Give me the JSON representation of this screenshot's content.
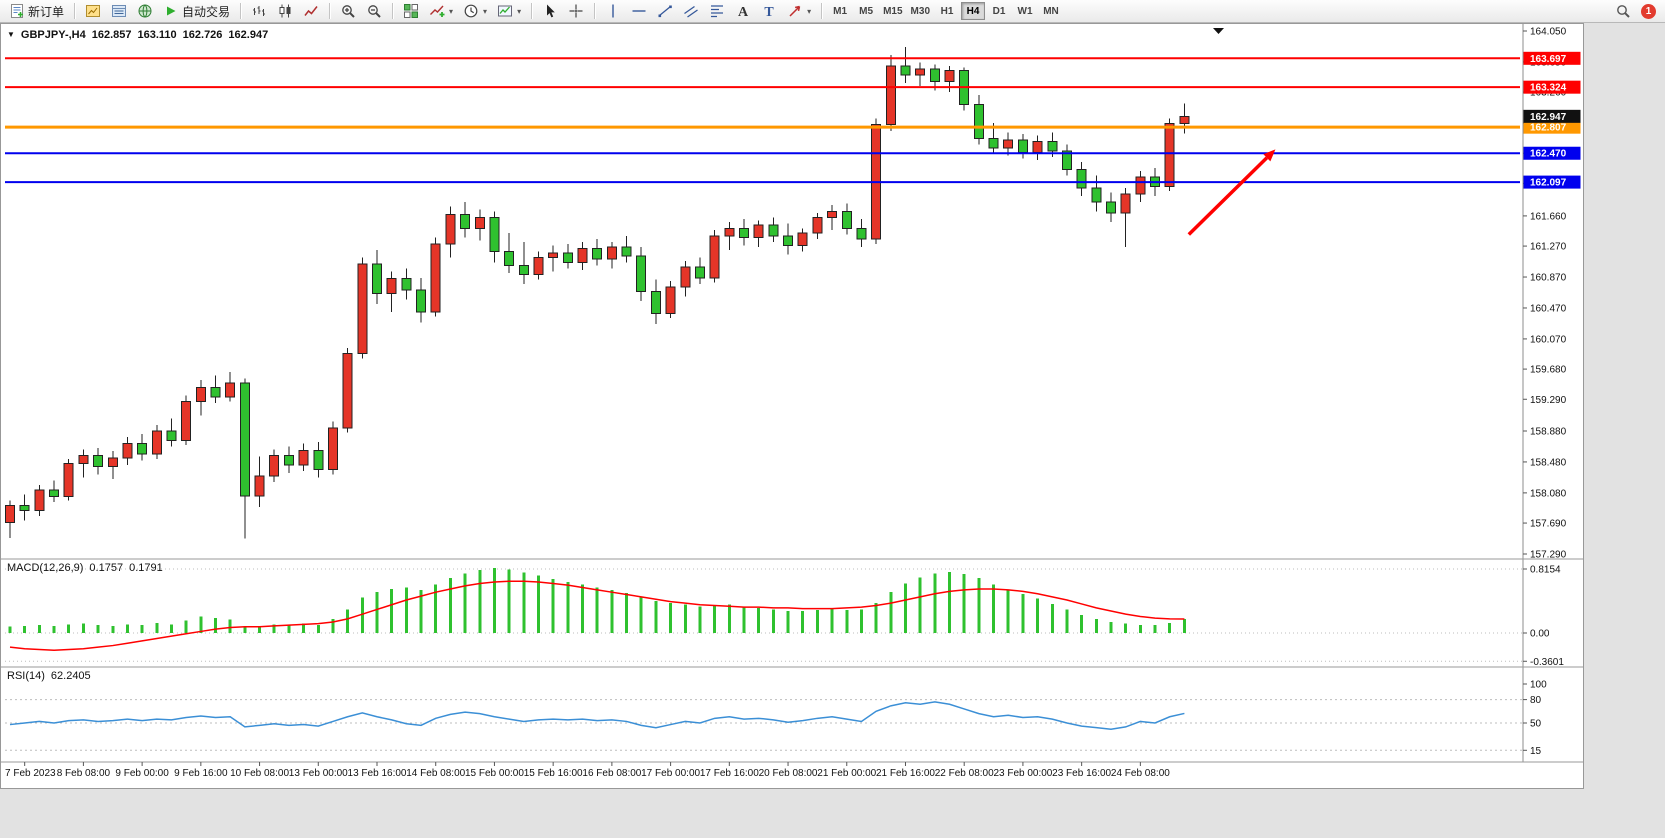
{
  "toolbar": {
    "new_order_label": "新订单",
    "autotrade_label": "自动交易",
    "timeframes": [
      "M1",
      "M5",
      "M15",
      "M30",
      "H1",
      "H4",
      "D1",
      "W1",
      "MN"
    ],
    "active_timeframe": "H4",
    "notification_count": "1",
    "items": [
      {
        "t": "btn",
        "name": "new-order-button",
        "icon": "new-order",
        "label_key": "new_order_label"
      },
      {
        "t": "sep"
      },
      {
        "t": "btn",
        "name": "market-watch-button",
        "icon": "market-watch"
      },
      {
        "t": "btn",
        "name": "data-window-button",
        "icon": "data-window"
      },
      {
        "t": "btn",
        "name": "navigator-button",
        "icon": "navigator"
      },
      {
        "t": "btn",
        "name": "autotrade-button",
        "icon": "autotrade",
        "label_key": "autotrade_label"
      },
      {
        "t": "sep"
      },
      {
        "t": "btn",
        "name": "bar-chart-button",
        "icon": "bar-chart"
      },
      {
        "t": "btn",
        "name": "candlestick-chart-button",
        "icon": "candle-chart"
      },
      {
        "t": "btn",
        "name": "line-chart-button",
        "icon": "line-chart"
      },
      {
        "t": "sep"
      },
      {
        "t": "btn",
        "name": "zoom-in-button",
        "icon": "zoom-in"
      },
      {
        "t": "btn",
        "name": "zoom-out-button",
        "icon": "zoom-out"
      },
      {
        "t": "sep"
      },
      {
        "t": "btn",
        "name": "tile-windows-button",
        "icon": "tile-windows"
      },
      {
        "t": "btn",
        "name": "indicators-button",
        "icon": "indicators",
        "caret": true
      },
      {
        "t": "btn",
        "name": "periods-button",
        "icon": "periods-clock",
        "caret": true
      },
      {
        "t": "btn",
        "name": "templates-button",
        "icon": "chart-template",
        "caret": true
      },
      {
        "t": "sep"
      },
      {
        "t": "btn",
        "name": "cursor-button",
        "icon": "cursor-arrow"
      },
      {
        "t": "btn",
        "name": "crosshair-button",
        "icon": "crosshair"
      },
      {
        "t": "sep"
      },
      {
        "t": "btn",
        "name": "vertical-line-button",
        "icon": "vertical-line"
      },
      {
        "t": "btn",
        "name": "horizontal-line-button",
        "icon": "horizontal-line"
      },
      {
        "t": "btn",
        "name": "trendline-button",
        "icon": "trendline"
      },
      {
        "t": "btn",
        "name": "channel-button",
        "icon": "channel"
      },
      {
        "t": "btn",
        "name": "fibonacci-button",
        "icon": "fibonacci"
      },
      {
        "t": "btn",
        "name": "text-button",
        "icon": "text-a"
      },
      {
        "t": "btn",
        "name": "label-button",
        "icon": "label-t"
      },
      {
        "t": "btn",
        "name": "shapes-button",
        "icon": "arrow-shape",
        "caret": true
      },
      {
        "t": "sep"
      },
      {
        "t": "timeframes"
      },
      {
        "t": "spacer"
      },
      {
        "t": "btn",
        "name": "search-button",
        "icon": "search"
      },
      {
        "t": "badge",
        "name": "notification-badge"
      }
    ]
  },
  "chart_data": [
    {
      "type": "candlestick",
      "symbol": "GBPJPY-",
      "timeframe": "H4",
      "title": {
        "symbol": "GBPJPY-,H4",
        "open": "162.857",
        "high": "163.110",
        "low": "162.726",
        "close": "162.947"
      },
      "colors": {
        "up": "#e53528",
        "down": "#2fc12f",
        "wick": "#222222"
      },
      "current_price": "162.947",
      "current_price_box_color": "#111111",
      "levels": [
        {
          "label": "163.697",
          "price": 163.697,
          "color": "#ff0000",
          "width": 2
        },
        {
          "label": "163.324",
          "price": 163.324,
          "color": "#ff0000",
          "width": 2
        },
        {
          "label": "162.807",
          "price": 162.807,
          "color": "#ff9800",
          "width": 3
        },
        {
          "label": "162.470",
          "price": 162.47,
          "color": "#0000ee",
          "width": 2
        },
        {
          "label": "162.097",
          "price": 162.097,
          "color": "#0000ee",
          "width": 2
        }
      ],
      "arrow": {
        "from": {
          "i": 80.3,
          "price": 161.42
        },
        "to": {
          "i": 86.2,
          "price": 162.52
        },
        "color": "#ff0000"
      },
      "y_ticks": [
        "164.050",
        "163.650",
        "163.260",
        "162.860",
        "162.470",
        "162.080",
        "161.660",
        "161.270",
        "160.870",
        "160.470",
        "160.070",
        "159.680",
        "159.290",
        "158.880",
        "158.480",
        "158.080",
        "157.690",
        "157.290"
      ],
      "x_labels": [
        "7 Feb 2023",
        "8 Feb 08:00",
        "9 Feb 00:00",
        "9 Feb 16:00",
        "10 Feb 08:00",
        "13 Feb 00:00",
        "13 Feb 16:00",
        "14 Feb 08:00",
        "15 Feb 00:00",
        "15 Feb 16:00",
        "16 Feb 08:00",
        "17 Feb 00:00",
        "17 Feb 16:00",
        "20 Feb 08:00",
        "21 Feb 00:00",
        "21 Feb 16:00",
        "22 Feb 08:00",
        "23 Feb 00:00",
        "23 Feb 16:00",
        "24 Feb 08:00"
      ],
      "label_start_index": 1,
      "label_step": 4,
      "candles": [
        [
          157.7,
          157.98,
          157.5,
          157.92
        ],
        [
          157.92,
          158.06,
          157.72,
          157.85
        ],
        [
          157.85,
          158.18,
          157.78,
          158.12
        ],
        [
          158.12,
          158.24,
          157.96,
          158.03
        ],
        [
          158.03,
          158.52,
          157.98,
          158.46
        ],
        [
          158.46,
          158.64,
          158.28,
          158.56
        ],
        [
          158.56,
          158.66,
          158.32,
          158.42
        ],
        [
          158.42,
          158.62,
          158.26,
          158.53
        ],
        [
          158.53,
          158.8,
          158.44,
          158.72
        ],
        [
          158.72,
          158.84,
          158.5,
          158.58
        ],
        [
          158.58,
          158.96,
          158.52,
          158.88
        ],
        [
          158.88,
          159.04,
          158.68,
          158.76
        ],
        [
          158.76,
          159.34,
          158.7,
          159.26
        ],
        [
          159.26,
          159.54,
          159.08,
          159.44
        ],
        [
          159.44,
          159.6,
          159.24,
          159.32
        ],
        [
          159.32,
          159.64,
          159.26,
          159.5
        ],
        [
          159.5,
          159.56,
          157.49,
          158.04
        ],
        [
          158.04,
          158.55,
          157.9,
          158.3
        ],
        [
          158.3,
          158.64,
          158.22,
          158.56
        ],
        [
          158.56,
          158.68,
          158.34,
          158.44
        ],
        [
          158.44,
          158.72,
          158.36,
          158.63
        ],
        [
          158.63,
          158.74,
          158.28,
          158.38
        ],
        [
          158.38,
          159.0,
          158.32,
          158.92
        ],
        [
          158.92,
          159.95,
          158.86,
          159.88
        ],
        [
          159.88,
          161.12,
          159.82,
          161.04
        ],
        [
          161.04,
          161.22,
          160.52,
          160.66
        ],
        [
          160.66,
          160.94,
          160.42,
          160.85
        ],
        [
          160.85,
          160.98,
          160.58,
          160.7
        ],
        [
          160.7,
          160.86,
          160.28,
          160.42
        ],
        [
          160.42,
          161.38,
          160.36,
          161.3
        ],
        [
          161.3,
          161.78,
          161.12,
          161.68
        ],
        [
          161.68,
          161.84,
          161.38,
          161.5
        ],
        [
          161.5,
          161.74,
          161.34,
          161.64
        ],
        [
          161.64,
          161.72,
          161.06,
          161.2
        ],
        [
          161.2,
          161.44,
          160.92,
          161.02
        ],
        [
          161.02,
          161.32,
          160.78,
          160.9
        ],
        [
          160.9,
          161.2,
          160.84,
          161.12
        ],
        [
          161.12,
          161.28,
          160.94,
          161.18
        ],
        [
          161.18,
          161.3,
          160.98,
          161.06
        ],
        [
          161.06,
          161.32,
          160.96,
          161.24
        ],
        [
          161.24,
          161.36,
          161.02,
          161.1
        ],
        [
          161.1,
          161.32,
          160.98,
          161.26
        ],
        [
          161.26,
          161.4,
          161.06,
          161.14
        ],
        [
          161.14,
          161.26,
          160.56,
          160.68
        ],
        [
          160.68,
          160.84,
          160.26,
          160.4
        ],
        [
          160.4,
          160.82,
          160.34,
          160.74
        ],
        [
          160.74,
          161.08,
          160.62,
          161.0
        ],
        [
          161.0,
          161.12,
          160.78,
          160.86
        ],
        [
          160.86,
          161.48,
          160.8,
          161.4
        ],
        [
          161.4,
          161.58,
          161.22,
          161.5
        ],
        [
          161.5,
          161.62,
          161.28,
          161.38
        ],
        [
          161.38,
          161.6,
          161.26,
          161.54
        ],
        [
          161.54,
          161.64,
          161.32,
          161.4
        ],
        [
          161.4,
          161.56,
          161.16,
          161.28
        ],
        [
          161.28,
          161.5,
          161.2,
          161.44
        ],
        [
          161.44,
          161.7,
          161.36,
          161.64
        ],
        [
          161.64,
          161.8,
          161.48,
          161.72
        ],
        [
          161.72,
          161.82,
          161.42,
          161.5
        ],
        [
          161.5,
          161.62,
          161.26,
          161.36
        ],
        [
          161.36,
          162.92,
          161.3,
          162.84
        ],
        [
          162.84,
          163.74,
          162.76,
          163.6
        ],
        [
          163.6,
          163.84,
          163.38,
          163.48
        ],
        [
          163.48,
          163.64,
          163.34,
          163.56
        ],
        [
          163.56,
          163.62,
          163.28,
          163.4
        ],
        [
          163.4,
          163.6,
          163.26,
          163.54
        ],
        [
          163.54,
          163.58,
          163.02,
          163.1
        ],
        [
          163.1,
          163.22,
          162.58,
          162.66
        ],
        [
          162.66,
          162.86,
          162.46,
          162.54
        ],
        [
          162.54,
          162.74,
          162.44,
          162.64
        ],
        [
          162.64,
          162.72,
          162.4,
          162.48
        ],
        [
          162.48,
          162.7,
          162.38,
          162.62
        ],
        [
          162.62,
          162.74,
          162.42,
          162.5
        ],
        [
          162.5,
          162.58,
          162.18,
          162.26
        ],
        [
          162.26,
          162.36,
          161.92,
          162.02
        ],
        [
          162.02,
          162.18,
          161.72,
          161.84
        ],
        [
          161.84,
          161.96,
          161.58,
          161.7
        ],
        [
          161.7,
          162.02,
          161.26,
          161.94
        ],
        [
          161.94,
          162.24,
          161.84,
          162.16
        ],
        [
          162.16,
          162.28,
          161.92,
          162.04
        ],
        [
          162.04,
          162.92,
          161.98,
          162.857
        ],
        [
          162.857,
          163.11,
          162.726,
          162.947
        ]
      ]
    },
    {
      "type": "bar",
      "name": "MACD(12,26,9)",
      "value_main": "0.1757",
      "value_signal": "0.1791",
      "colors": {
        "histogram": "#2fc12f",
        "signal": "#ff0000"
      },
      "y_ticks": [
        "0.8154",
        "0.00",
        "-0.3601"
      ],
      "histogram": [
        0.08,
        0.09,
        0.1,
        0.09,
        0.11,
        0.12,
        0.1,
        0.09,
        0.11,
        0.1,
        0.13,
        0.11,
        0.16,
        0.21,
        0.19,
        0.17,
        0.07,
        0.09,
        0.11,
        0.1,
        0.12,
        0.1,
        0.18,
        0.3,
        0.45,
        0.52,
        0.56,
        0.58,
        0.55,
        0.62,
        0.7,
        0.76,
        0.8,
        0.83,
        0.81,
        0.77,
        0.73,
        0.69,
        0.65,
        0.62,
        0.58,
        0.55,
        0.51,
        0.46,
        0.41,
        0.38,
        0.36,
        0.34,
        0.35,
        0.36,
        0.34,
        0.32,
        0.3,
        0.28,
        0.28,
        0.29,
        0.31,
        0.29,
        0.3,
        0.38,
        0.52,
        0.63,
        0.71,
        0.76,
        0.78,
        0.75,
        0.7,
        0.62,
        0.55,
        0.5,
        0.44,
        0.37,
        0.3,
        0.23,
        0.18,
        0.14,
        0.12,
        0.1,
        0.1,
        0.13,
        0.1757
      ],
      "signal": [
        -0.18,
        -0.2,
        -0.21,
        -0.22,
        -0.21,
        -0.2,
        -0.18,
        -0.16,
        -0.13,
        -0.1,
        -0.07,
        -0.04,
        -0.01,
        0.02,
        0.05,
        0.07,
        0.08,
        0.08,
        0.09,
        0.1,
        0.11,
        0.12,
        0.14,
        0.18,
        0.24,
        0.3,
        0.36,
        0.42,
        0.47,
        0.52,
        0.56,
        0.6,
        0.63,
        0.65,
        0.66,
        0.66,
        0.65,
        0.63,
        0.61,
        0.58,
        0.55,
        0.52,
        0.49,
        0.46,
        0.43,
        0.4,
        0.38,
        0.36,
        0.35,
        0.34,
        0.33,
        0.33,
        0.32,
        0.32,
        0.31,
        0.31,
        0.31,
        0.32,
        0.33,
        0.35,
        0.38,
        0.42,
        0.46,
        0.5,
        0.53,
        0.55,
        0.56,
        0.56,
        0.55,
        0.53,
        0.5,
        0.46,
        0.42,
        0.37,
        0.32,
        0.28,
        0.24,
        0.21,
        0.19,
        0.18,
        0.1791
      ]
    },
    {
      "type": "line",
      "name": "RSI(14)",
      "value": "62.2405",
      "colors": {
        "line": "#3b8fd6"
      },
      "y_ticks": [
        "100",
        "80",
        "50",
        "15"
      ],
      "values": [
        48,
        50,
        52,
        50,
        53,
        54,
        52,
        53,
        55,
        53,
        55,
        54,
        57,
        59,
        57,
        58,
        45,
        47,
        49,
        47,
        48,
        46,
        52,
        58,
        63,
        58,
        54,
        49,
        47,
        56,
        61,
        64,
        62,
        58,
        55,
        52,
        54,
        55,
        54,
        55,
        53,
        54,
        52,
        47,
        44,
        48,
        52,
        50,
        56,
        58,
        55,
        56,
        54,
        51,
        53,
        56,
        58,
        55,
        52,
        65,
        72,
        76,
        74,
        77,
        74,
        68,
        62,
        58,
        60,
        57,
        58,
        55,
        50,
        46,
        44,
        42,
        45,
        52,
        50,
        58,
        62.2405
      ]
    }
  ]
}
